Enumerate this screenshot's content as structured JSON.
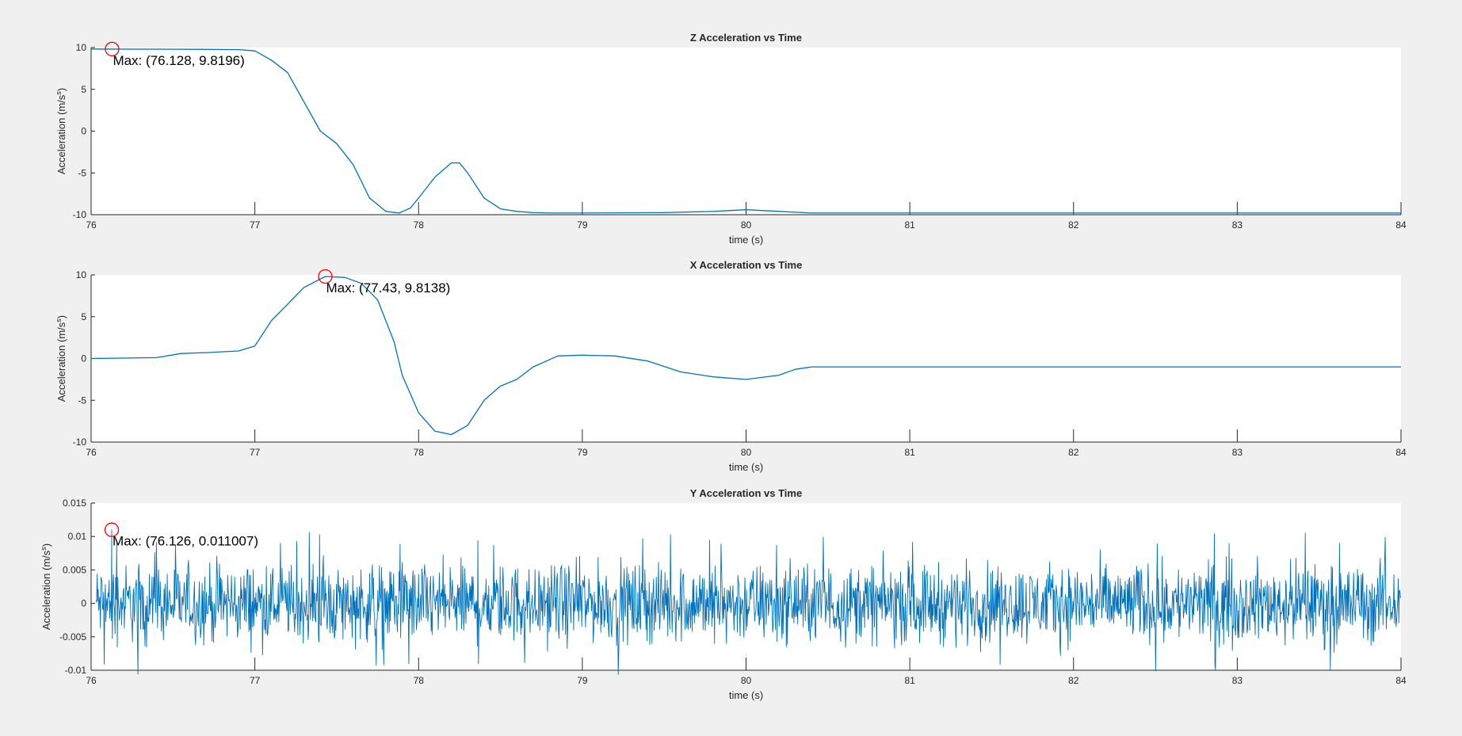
{
  "figure": {
    "background": "#f0f0f0",
    "line_color": "#0072bd",
    "marker_color": "#ff0000"
  },
  "chart_data": [
    {
      "type": "line",
      "title": "Z Acceleration vs Time",
      "xlabel": "time (s)",
      "ylabel": "Acceleration (m/s",
      "ylabel_sup": "s",
      "ylabel_close": ")",
      "xlim": [
        76,
        84
      ],
      "ylim": [
        -10,
        10
      ],
      "xticks": [
        76,
        77,
        78,
        79,
        80,
        81,
        82,
        83,
        84
      ],
      "yticks": [
        -10,
        -5,
        0,
        5,
        10
      ],
      "ytick_labels": [
        "-10",
        "-5",
        "0",
        "5",
        "10"
      ],
      "series": [
        {
          "x": [
            76,
            76.5,
            76.9,
            77.0,
            77.1,
            77.2,
            77.3,
            77.4,
            77.5,
            77.6,
            77.7,
            77.8,
            77.88,
            77.95,
            78.0,
            78.1,
            78.2,
            78.25,
            78.3,
            78.4,
            78.5,
            78.6,
            78.7,
            78.8,
            79.0,
            79.5,
            79.8,
            80.0,
            80.2,
            80.4,
            81,
            82,
            83,
            84
          ],
          "y": [
            9.82,
            9.8,
            9.75,
            9.6,
            8.5,
            7.0,
            3.5,
            0.0,
            -1.5,
            -4.0,
            -8.0,
            -9.6,
            -9.8,
            -9.2,
            -8.0,
            -5.5,
            -3.8,
            -3.8,
            -5.0,
            -8.0,
            -9.3,
            -9.6,
            -9.75,
            -9.8,
            -9.8,
            -9.75,
            -9.6,
            -9.4,
            -9.6,
            -9.8,
            -9.8,
            -9.8,
            -9.8,
            -9.8
          ]
        }
      ],
      "annotation": {
        "x": 76.128,
        "y": 9.8196,
        "label": "Max: (76.128, 9.8196)"
      }
    },
    {
      "type": "line",
      "title": "X Acceleration vs Time",
      "xlabel": "time (s)",
      "ylabel": "Acceleration (m/s",
      "ylabel_sup": "s",
      "ylabel_close": ")",
      "xlim": [
        76,
        84
      ],
      "ylim": [
        -10,
        10
      ],
      "xticks": [
        76,
        77,
        78,
        79,
        80,
        81,
        82,
        83,
        84
      ],
      "yticks": [
        -10,
        -5,
        0,
        5,
        10
      ],
      "ytick_labels": [
        "-10",
        "-5",
        "0",
        "5",
        "10"
      ],
      "series": [
        {
          "x": [
            76,
            76.4,
            76.55,
            76.7,
            76.9,
            77.0,
            77.05,
            77.1,
            77.2,
            77.3,
            77.43,
            77.55,
            77.65,
            77.75,
            77.85,
            77.9,
            78.0,
            78.1,
            78.2,
            78.3,
            78.4,
            78.5,
            78.6,
            78.7,
            78.85,
            79.0,
            79.2,
            79.4,
            79.6,
            79.8,
            80.0,
            80.2,
            80.3,
            80.4,
            80.5,
            81,
            82,
            83,
            84
          ],
          "y": [
            0.0,
            0.1,
            0.6,
            0.7,
            0.9,
            1.5,
            3.0,
            4.5,
            6.5,
            8.5,
            9.8138,
            9.7,
            9.0,
            7.0,
            2.0,
            -2.0,
            -6.5,
            -8.7,
            -9.1,
            -8.0,
            -5.0,
            -3.3,
            -2.5,
            -1.0,
            0.3,
            0.4,
            0.3,
            -0.3,
            -1.6,
            -2.2,
            -2.5,
            -2.0,
            -1.3,
            -1.0,
            -1.0,
            -1.0,
            -1.0,
            -1.0,
            -1.0
          ]
        }
      ],
      "annotation": {
        "x": 77.43,
        "y": 9.8138,
        "label": "Max: (77.43, 9.8138)"
      }
    },
    {
      "type": "line",
      "title": "Y Acceleration vs Time",
      "xlabel": "time (s)",
      "ylabel": "Acceleration (m/s",
      "ylabel_sup": "s",
      "ylabel_close": ")",
      "xlim": [
        76,
        84
      ],
      "ylim": [
        -0.01,
        0.015
      ],
      "xticks": [
        76,
        77,
        78,
        79,
        80,
        81,
        82,
        83,
        84
      ],
      "yticks": [
        -0.01,
        -0.005,
        0,
        0.005,
        0.01,
        0.015
      ],
      "ytick_labels": [
        "-0.01",
        "-0.005",
        "0",
        "0.005",
        "0.01",
        "0.015"
      ],
      "series": [
        {
          "noise": {
            "center": 0.0,
            "amplitude": 0.0085,
            "x_start": 76.03,
            "x_end": 84,
            "samples": 2400
          }
        }
      ],
      "annotation": {
        "x": 76.126,
        "y": 0.011007,
        "label": "Max: (76.126, 0.011007)"
      }
    }
  ]
}
